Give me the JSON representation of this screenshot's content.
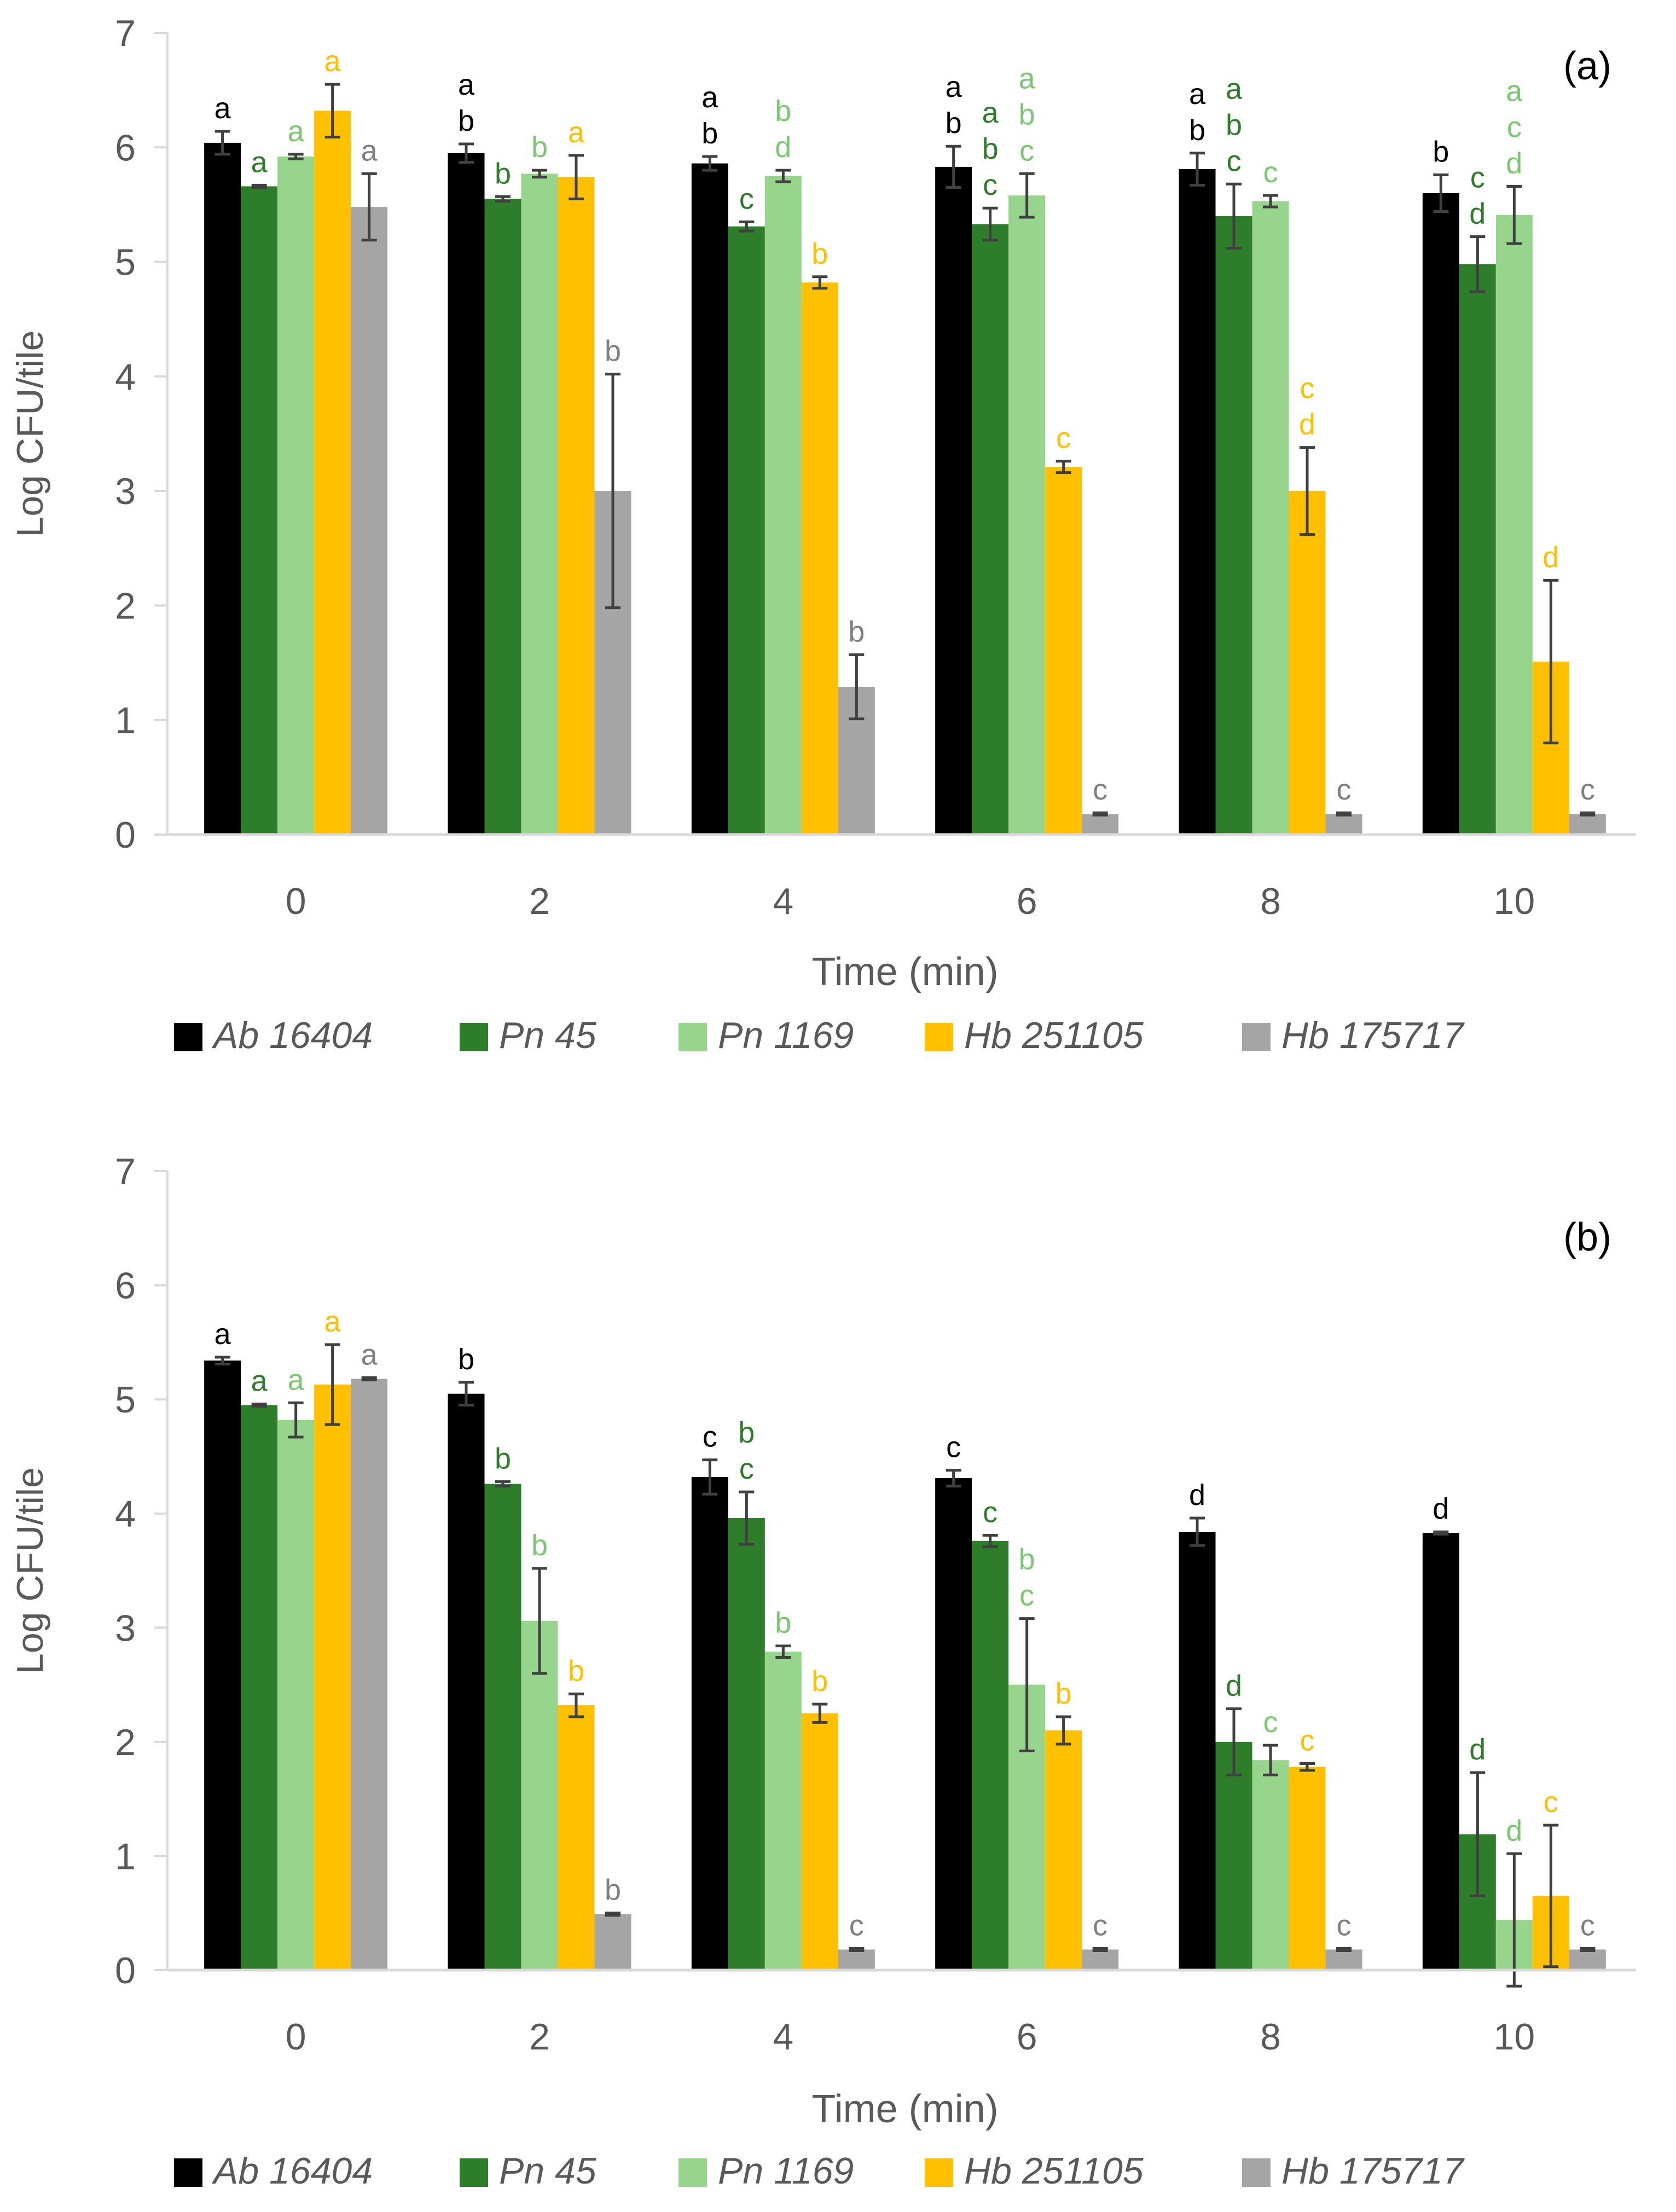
{
  "chart_data": [
    {
      "panel": "(a)",
      "type": "bar",
      "xlabel": "Time (min)",
      "ylabel": "Log CFU/tile",
      "ylim": [
        0,
        7
      ],
      "yticks": [
        "0",
        "1",
        "2",
        "3",
        "4",
        "5",
        "6",
        "7"
      ],
      "categories": [
        "0",
        "2",
        "4",
        "6",
        "8",
        "10"
      ],
      "series": [
        {
          "name": "Ab 16404",
          "color": "#000000",
          "label_color": "#000000",
          "values": [
            6.04,
            5.95,
            5.86,
            5.83,
            5.81,
            5.6
          ],
          "errors": [
            0.1,
            0.08,
            0.06,
            0.18,
            0.14,
            0.16
          ],
          "letters": [
            [
              "a"
            ],
            [
              "a",
              "b"
            ],
            [
              "a",
              "b"
            ],
            [
              "a",
              "b"
            ],
            [
              "a",
              "b"
            ],
            [
              "b"
            ]
          ]
        },
        {
          "name": "Pn 45",
          "color": "#2e7d2b",
          "label_color": "#2e7d2b",
          "values": [
            5.66,
            5.55,
            5.31,
            5.33,
            5.4,
            4.98
          ],
          "errors": [
            0.01,
            0.02,
            0.04,
            0.14,
            0.28,
            0.24
          ],
          "letters": [
            [
              "a"
            ],
            [
              "b"
            ],
            [
              "c"
            ],
            [
              "a",
              "b",
              "c"
            ],
            [
              "a",
              "b",
              "c"
            ],
            [
              "c",
              "d"
            ]
          ]
        },
        {
          "name": "Pn 1169",
          "color": "#97d58c",
          "label_color": "#7cc872",
          "values": [
            5.92,
            5.77,
            5.75,
            5.58,
            5.53,
            5.41
          ],
          "errors": [
            0.02,
            0.03,
            0.05,
            0.19,
            0.05,
            0.25
          ],
          "letters": [
            [
              "a"
            ],
            [
              "b"
            ],
            [
              "b",
              "d"
            ],
            [
              "a",
              "b",
              "c"
            ],
            [
              "c"
            ],
            [
              "a",
              "c",
              "d"
            ]
          ]
        },
        {
          "name": "Hb 251105",
          "color": "#ffc000",
          "label_color": "#ffc000",
          "values": [
            6.32,
            5.74,
            4.82,
            3.21,
            3.0,
            1.51
          ],
          "errors": [
            0.23,
            0.19,
            0.05,
            0.05,
            0.38,
            0.71
          ],
          "letters": [
            [
              "a"
            ],
            [
              "a"
            ],
            [
              "b"
            ],
            [
              "c"
            ],
            [
              "c",
              "d"
            ],
            [
              "d"
            ]
          ]
        },
        {
          "name": "Hb 175717",
          "color": "#a5a5a5",
          "label_color": "#7f7f7f",
          "values": [
            5.48,
            3.0,
            1.29,
            0.18,
            0.18,
            0.18
          ],
          "errors": [
            0.29,
            1.02,
            0.28,
            0.01,
            0.01,
            0.01
          ],
          "letters": [
            [
              "a"
            ],
            [
              "b"
            ],
            [
              "b"
            ],
            [
              "c"
            ],
            [
              "c"
            ],
            [
              "c"
            ]
          ]
        }
      ]
    },
    {
      "panel": "(b)",
      "type": "bar",
      "xlabel": "Time (min)",
      "ylabel": "Log CFU/tile",
      "ylim": [
        0,
        7
      ],
      "yticks": [
        "0",
        "1",
        "2",
        "3",
        "4",
        "5",
        "6",
        "7"
      ],
      "categories": [
        "0",
        "2",
        "4",
        "6",
        "8",
        "10"
      ],
      "series": [
        {
          "name": "Ab 16404",
          "color": "#000000",
          "label_color": "#000000",
          "values": [
            5.34,
            5.05,
            4.32,
            4.31,
            3.84,
            3.83
          ],
          "errors": [
            0.03,
            0.1,
            0.15,
            0.07,
            0.12,
            0.01
          ],
          "letters": [
            [
              "a"
            ],
            [
              "b"
            ],
            [
              "c"
            ],
            [
              "c"
            ],
            [
              "d"
            ],
            [
              "d"
            ]
          ]
        },
        {
          "name": "Pn 45",
          "color": "#2e7d2b",
          "label_color": "#2e7d2b",
          "values": [
            4.95,
            4.26,
            3.96,
            3.76,
            2.0,
            1.19
          ],
          "errors": [
            0.01,
            0.02,
            0.23,
            0.05,
            0.29,
            0.54
          ],
          "letters": [
            [
              "a"
            ],
            [
              "b"
            ],
            [
              "b",
              "c"
            ],
            [
              "c"
            ],
            [
              "d"
            ],
            [
              "d"
            ]
          ]
        },
        {
          "name": "Pn 1169",
          "color": "#97d58c",
          "label_color": "#7cc872",
          "values": [
            4.82,
            3.06,
            2.79,
            2.5,
            1.84,
            0.44
          ],
          "errors": [
            0.15,
            0.46,
            0.05,
            0.58,
            0.13,
            0.58
          ],
          "letters": [
            [
              "a"
            ],
            [
              "b"
            ],
            [
              "b"
            ],
            [
              "b",
              "c"
            ],
            [
              "c"
            ],
            [
              "d"
            ]
          ]
        },
        {
          "name": "Hb 251105",
          "color": "#ffc000",
          "label_color": "#ffc000",
          "values": [
            5.13,
            2.32,
            2.25,
            2.1,
            1.78,
            0.65
          ],
          "errors": [
            0.35,
            0.1,
            0.08,
            0.12,
            0.03,
            0.62
          ],
          "letters": [
            [
              "a"
            ],
            [
              "b"
            ],
            [
              "b"
            ],
            [
              "b"
            ],
            [
              "c"
            ],
            [
              "c"
            ]
          ]
        },
        {
          "name": "Hb 175717",
          "color": "#a5a5a5",
          "label_color": "#7f7f7f",
          "values": [
            5.18,
            0.49,
            0.18,
            0.18,
            0.18,
            0.18
          ],
          "errors": [
            0.01,
            0.01,
            0.01,
            0.01,
            0.01,
            0.01
          ],
          "letters": [
            [
              "a"
            ],
            [
              "b"
            ],
            [
              "c"
            ],
            [
              "c"
            ],
            [
              "c"
            ],
            [
              "c"
            ]
          ]
        }
      ]
    }
  ]
}
